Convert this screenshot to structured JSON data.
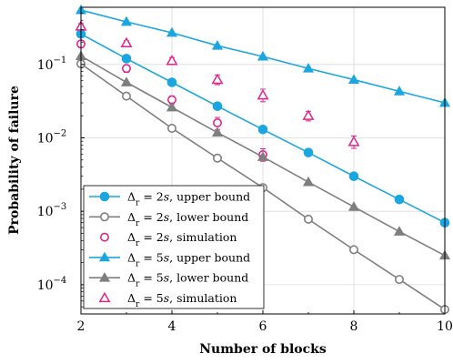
{
  "chart_data": {
    "type": "line",
    "xlabel": "Number of blocks",
    "ylabel": "Probability of failure",
    "xlim": [
      2,
      10
    ],
    "ylim": [
      4e-05,
      0.6
    ],
    "yscale": "log",
    "grid": true,
    "legend_position": "bottom-left",
    "x_ticks": [
      2,
      4,
      6,
      8,
      10
    ],
    "y_ticks": [
      {
        "value": 0.1,
        "base": "10",
        "exp": "−1"
      },
      {
        "value": 0.01,
        "base": "10",
        "exp": "−2"
      },
      {
        "value": 0.001,
        "base": "10",
        "exp": "−3"
      },
      {
        "value": 0.0001,
        "base": "10",
        "exp": "−4"
      }
    ],
    "series": [
      {
        "legend_math": "Δ",
        "legend_sub": "r",
        "legend_mid": " = 2",
        "legend_unit": "s",
        "legend_tail": ", upper bound",
        "color": "#1ba6e0",
        "marker": "circle-filled",
        "line": true,
        "x": [
          2,
          3,
          4,
          5,
          6,
          7,
          8,
          9,
          10
        ],
        "y": [
          0.26,
          0.12,
          0.057,
          0.027,
          0.013,
          0.0063,
          0.003,
          0.00145,
          0.0007
        ]
      },
      {
        "legend_math": "Δ",
        "legend_sub": "r",
        "legend_mid": " = 2",
        "legend_unit": "s",
        "legend_tail": ", lower bound",
        "color": "#7f7f7f",
        "marker": "circle-open",
        "line": true,
        "x": [
          2,
          3,
          4,
          5,
          6,
          7,
          8,
          9,
          10
        ],
        "y": [
          0.102,
          0.037,
          0.0135,
          0.0053,
          0.0021,
          0.00078,
          0.0003,
          0.000118,
          4.6e-05
        ]
      },
      {
        "legend_math": "Δ",
        "legend_sub": "r",
        "legend_mid": " = 2",
        "legend_unit": "s",
        "legend_tail": ", simulation",
        "color": "#e0248f",
        "marker": "circle-open",
        "line": false,
        "x": [
          2,
          3,
          4,
          5,
          6
        ],
        "y": [
          0.19,
          0.088,
          0.033,
          0.016,
          0.0059
        ],
        "err_low": [
          0.17,
          0.078,
          0.029,
          0.013,
          0.0048
        ],
        "err_high": [
          0.21,
          0.098,
          0.037,
          0.019,
          0.0071
        ]
      },
      {
        "legend_math": "Δ",
        "legend_sub": "r",
        "legend_mid": " = 5",
        "legend_unit": "s",
        "legend_tail": ", upper bound",
        "color": "#1ba6e0",
        "marker": "triangle-filled",
        "line": true,
        "x": [
          2,
          3,
          4,
          5,
          6,
          7,
          8,
          9,
          10
        ],
        "y": [
          0.55,
          0.38,
          0.27,
          0.18,
          0.128,
          0.088,
          0.062,
          0.043,
          0.03
        ]
      },
      {
        "legend_math": "Δ",
        "legend_sub": "r",
        "legend_mid": " = 5",
        "legend_unit": "s",
        "legend_tail": ", lower bound",
        "color": "#7f7f7f",
        "marker": "triangle-filled",
        "line": true,
        "x": [
          2,
          3,
          4,
          5,
          6,
          7,
          8,
          9,
          10
        ],
        "y": [
          0.13,
          0.057,
          0.026,
          0.0118,
          0.0055,
          0.0025,
          0.00115,
          0.00053,
          0.00025
        ]
      },
      {
        "legend_math": "Δ",
        "legend_sub": "r",
        "legend_mid": " = 5",
        "legend_unit": "s",
        "legend_tail": ", simulation",
        "color": "#e0248f",
        "marker": "triangle-open",
        "line": false,
        "x": [
          2,
          3,
          4,
          5,
          6,
          7,
          8
        ],
        "y": [
          0.33,
          0.195,
          0.112,
          0.062,
          0.038,
          0.02,
          0.0088
        ],
        "err_low": [
          0.3,
          0.18,
          0.1,
          0.053,
          0.031,
          0.017,
          0.0072
        ],
        "err_high": [
          0.36,
          0.21,
          0.124,
          0.072,
          0.046,
          0.023,
          0.0106
        ]
      }
    ]
  }
}
